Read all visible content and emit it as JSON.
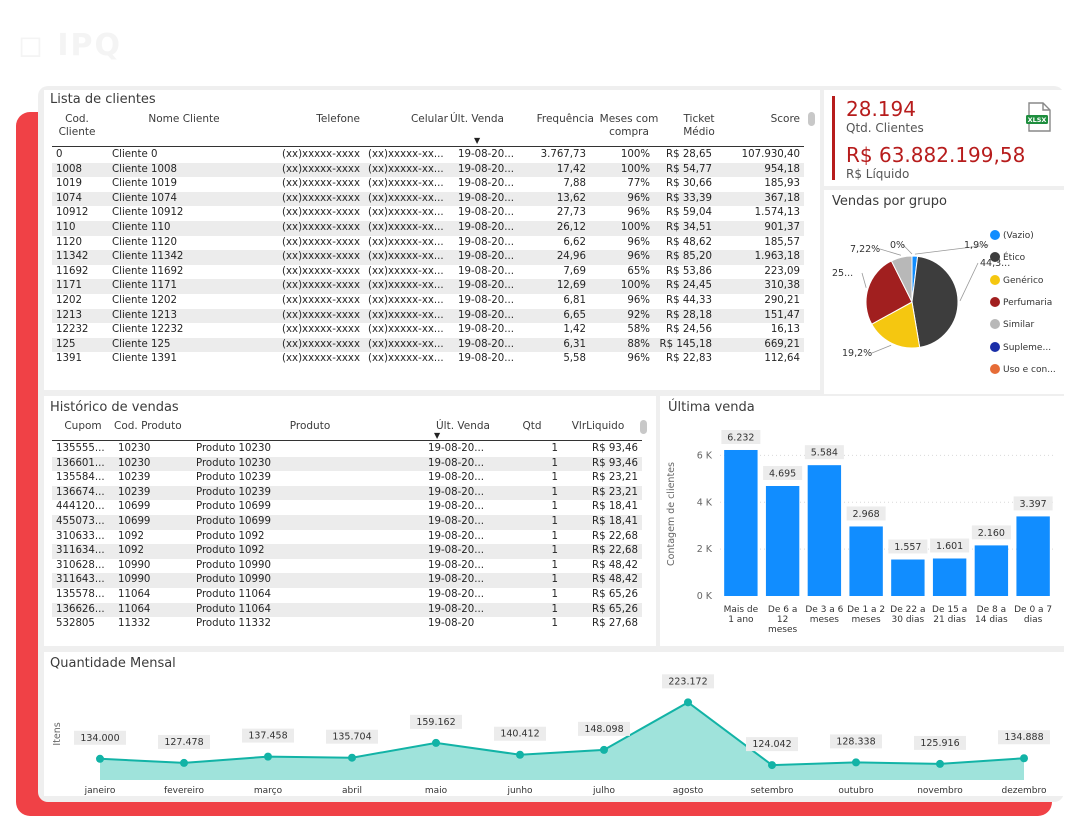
{
  "clients": {
    "title": "Lista de clientes",
    "columns": [
      "Cod. Cliente",
      "Nome Cliente",
      "Telefone",
      "Celular",
      "Últ. Venda",
      "Frequência",
      "Meses com compra",
      "Ticket Médio",
      "Score"
    ],
    "rows": [
      [
        "0",
        "Cliente 0",
        "(xx)xxxxx-xxxx",
        "(xx)xxxxx-xx...",
        "19-08-20...",
        "3.767,73",
        "100%",
        "R$ 28,65",
        "107.930,40"
      ],
      [
        "1008",
        "Cliente 1008",
        "(xx)xxxxx-xxxx",
        "(xx)xxxxx-xx...",
        "19-08-20...",
        "17,42",
        "100%",
        "R$ 54,77",
        "954,18"
      ],
      [
        "1019",
        "Cliente 1019",
        "(xx)xxxxx-xxxx",
        "(xx)xxxxx-xx...",
        "19-08-20...",
        "7,88",
        "77%",
        "R$ 30,66",
        "185,93"
      ],
      [
        "1074",
        "Cliente 1074",
        "(xx)xxxxx-xxxx",
        "(xx)xxxxx-xx...",
        "19-08-20...",
        "13,62",
        "96%",
        "R$ 33,39",
        "367,18"
      ],
      [
        "10912",
        "Cliente 10912",
        "(xx)xxxxx-xxxx",
        "(xx)xxxxx-xx...",
        "19-08-20...",
        "27,73",
        "96%",
        "R$ 59,04",
        "1.574,13"
      ],
      [
        "110",
        "Cliente 110",
        "(xx)xxxxx-xxxx",
        "(xx)xxxxx-xx...",
        "19-08-20...",
        "26,12",
        "100%",
        "R$ 34,51",
        "901,37"
      ],
      [
        "1120",
        "Cliente 1120",
        "(xx)xxxxx-xxxx",
        "(xx)xxxxx-xx...",
        "19-08-20...",
        "6,62",
        "96%",
        "R$ 48,62",
        "185,57"
      ],
      [
        "11342",
        "Cliente 11342",
        "(xx)xxxxx-xxxx",
        "(xx)xxxxx-xx...",
        "19-08-20...",
        "24,96",
        "96%",
        "R$ 85,20",
        "1.963,18"
      ],
      [
        "11692",
        "Cliente 11692",
        "(xx)xxxxx-xxxx",
        "(xx)xxxxx-xx...",
        "19-08-20...",
        "7,69",
        "65%",
        "R$ 53,86",
        "223,09"
      ],
      [
        "1171",
        "Cliente 1171",
        "(xx)xxxxx-xxxx",
        "(xx)xxxxx-xx...",
        "19-08-20...",
        "12,69",
        "100%",
        "R$ 24,45",
        "310,38"
      ],
      [
        "1202",
        "Cliente 1202",
        "(xx)xxxxx-xxxx",
        "(xx)xxxxx-xx...",
        "19-08-20...",
        "6,81",
        "96%",
        "R$ 44,33",
        "290,21"
      ],
      [
        "1213",
        "Cliente 1213",
        "(xx)xxxxx-xxxx",
        "(xx)xxxxx-xx...",
        "19-08-20...",
        "6,65",
        "92%",
        "R$ 28,18",
        "151,47"
      ],
      [
        "12232",
        "Cliente 12232",
        "(xx)xxxxx-xxxx",
        "(xx)xxxxx-xx...",
        "19-08-20...",
        "1,42",
        "58%",
        "R$ 24,56",
        "16,13"
      ],
      [
        "125",
        "Cliente 125",
        "(xx)xxxxx-xxxx",
        "(xx)xxxxx-xx...",
        "19-08-20...",
        "6,31",
        "88%",
        "R$ 145,18",
        "669,21"
      ],
      [
        "1391",
        "Cliente 1391",
        "(xx)xxxxx-xxxx",
        "(xx)xxxxx-xx...",
        "19-08-20...",
        "5,58",
        "96%",
        "R$ 22,83",
        "112,64"
      ]
    ]
  },
  "kpi": {
    "clients_value": "28.194",
    "clients_label": "Qtd. Clientes",
    "net_value": "R$ 63.882.199,58",
    "net_label": "R$ Líquido",
    "export_icon": "xlsx-file-icon",
    "export_text": "XLSX"
  },
  "sales": {
    "title": "Histórico de vendas",
    "columns": [
      "Cupom",
      "Cod. Produto",
      "Produto",
      "Últ. Venda",
      "Qtd",
      "VlrLiquido"
    ],
    "rows": [
      [
        "135555...",
        "10230",
        "Produto 10230",
        "19-08-20...",
        "1",
        "R$ 93,46"
      ],
      [
        "136601...",
        "10230",
        "Produto 10230",
        "19-08-20...",
        "1",
        "R$ 93,46"
      ],
      [
        "135584...",
        "10239",
        "Produto 10239",
        "19-08-20...",
        "1",
        "R$ 23,21"
      ],
      [
        "136674...",
        "10239",
        "Produto 10239",
        "19-08-20...",
        "1",
        "R$ 23,21"
      ],
      [
        "444120...",
        "10699",
        "Produto 10699",
        "19-08-20...",
        "1",
        "R$ 18,41"
      ],
      [
        "455073...",
        "10699",
        "Produto 10699",
        "19-08-20...",
        "1",
        "R$ 18,41"
      ],
      [
        "310633...",
        "1092",
        "Produto 1092",
        "19-08-20...",
        "1",
        "R$ 22,68"
      ],
      [
        "311634...",
        "1092",
        "Produto 1092",
        "19-08-20...",
        "1",
        "R$ 22,68"
      ],
      [
        "310628...",
        "10990",
        "Produto 10990",
        "19-08-20...",
        "1",
        "R$ 48,42"
      ],
      [
        "311643...",
        "10990",
        "Produto 10990",
        "19-08-20...",
        "1",
        "R$ 48,42"
      ],
      [
        "135578...",
        "11064",
        "Produto 11064",
        "19-08-20...",
        "1",
        "R$ 65,26"
      ],
      [
        "136626...",
        "11064",
        "Produto 11064",
        "19-08-20...",
        "1",
        "R$ 65,26"
      ],
      [
        "532805",
        "11332",
        "Produto 11332",
        "19-08-20",
        "1",
        "R$ 27,68"
      ]
    ]
  },
  "chart_data": [
    {
      "type": "pie",
      "title": "Vendas por grupo",
      "categories": [
        "(Vazio)",
        "Ético",
        "Genérico",
        "Perfumaria",
        "Similar",
        "Suplemе...",
        "Uso e con..."
      ],
      "values": [
        1.9,
        44.3,
        19.2,
        25.0,
        7.22,
        0.0,
        0.0
      ],
      "data_labels": [
        "1,9%",
        "44,3...",
        "19,2%",
        "25...",
        "7,22%",
        "0%",
        ""
      ],
      "colors": [
        "#118dff",
        "#3d3d3d",
        "#f5c710",
        "#a11f1f",
        "#b8b8b8",
        "#1a2ea8",
        "#e66c37"
      ],
      "legend": "right"
    },
    {
      "type": "bar",
      "title": "Última venda",
      "ylabel": "Contagem de clientes",
      "categories": [
        "Mais de 1 ano",
        "De 6 a 12 meses",
        "De 3 a 6 meses",
        "De 1 a 2 meses",
        "De 22 a 30 dias",
        "De 15 a 21 dias",
        "De 8 a 14 dias",
        "De 0 a 7 dias"
      ],
      "category_lines": [
        [
          "Mais de",
          "1 ano"
        ],
        [
          "De 6 a",
          "12",
          "meses"
        ],
        [
          "De 3 a 6",
          "meses"
        ],
        [
          "De 1 a 2",
          "meses"
        ],
        [
          "De 22 a",
          "30 dias"
        ],
        [
          "De 15 a",
          "21 dias"
        ],
        [
          "De 8 a",
          "14 dias"
        ],
        [
          "De 0 a 7",
          "dias"
        ]
      ],
      "values": [
        6232,
        4695,
        5584,
        2968,
        1557,
        1601,
        2160,
        3397
      ],
      "value_labels": [
        "6.232",
        "4.695",
        "5.584",
        "2.968",
        "1.557",
        "1.601",
        "2.160",
        "3.397"
      ],
      "ylim": [
        0,
        7000
      ],
      "yticks": [
        0,
        2000,
        4000,
        6000
      ],
      "ytick_labels": [
        "0 K",
        "2 K",
        "4 K",
        "6 K"
      ],
      "color": "#118dff",
      "grid": true
    },
    {
      "type": "area",
      "title": "Quantidade Mensal",
      "ylabel": "Itens",
      "x": [
        "janeiro",
        "fevereiro",
        "março",
        "abril",
        "maio",
        "junho",
        "julho",
        "agosto",
        "setembro",
        "outubro",
        "novembro",
        "dezembro"
      ],
      "values": [
        134000,
        127478,
        137458,
        135704,
        159162,
        140412,
        148098,
        223172,
        124042,
        128338,
        125916,
        134888
      ],
      "value_labels": [
        "134.000",
        "127.478",
        "137.458",
        "135.704",
        "159.162",
        "140.412",
        "148.098",
        "223.172",
        "124.042",
        "128.338",
        "125.916",
        "134.888"
      ],
      "line_color": "#12b3a6",
      "fill_color": "#9fe3db"
    }
  ]
}
